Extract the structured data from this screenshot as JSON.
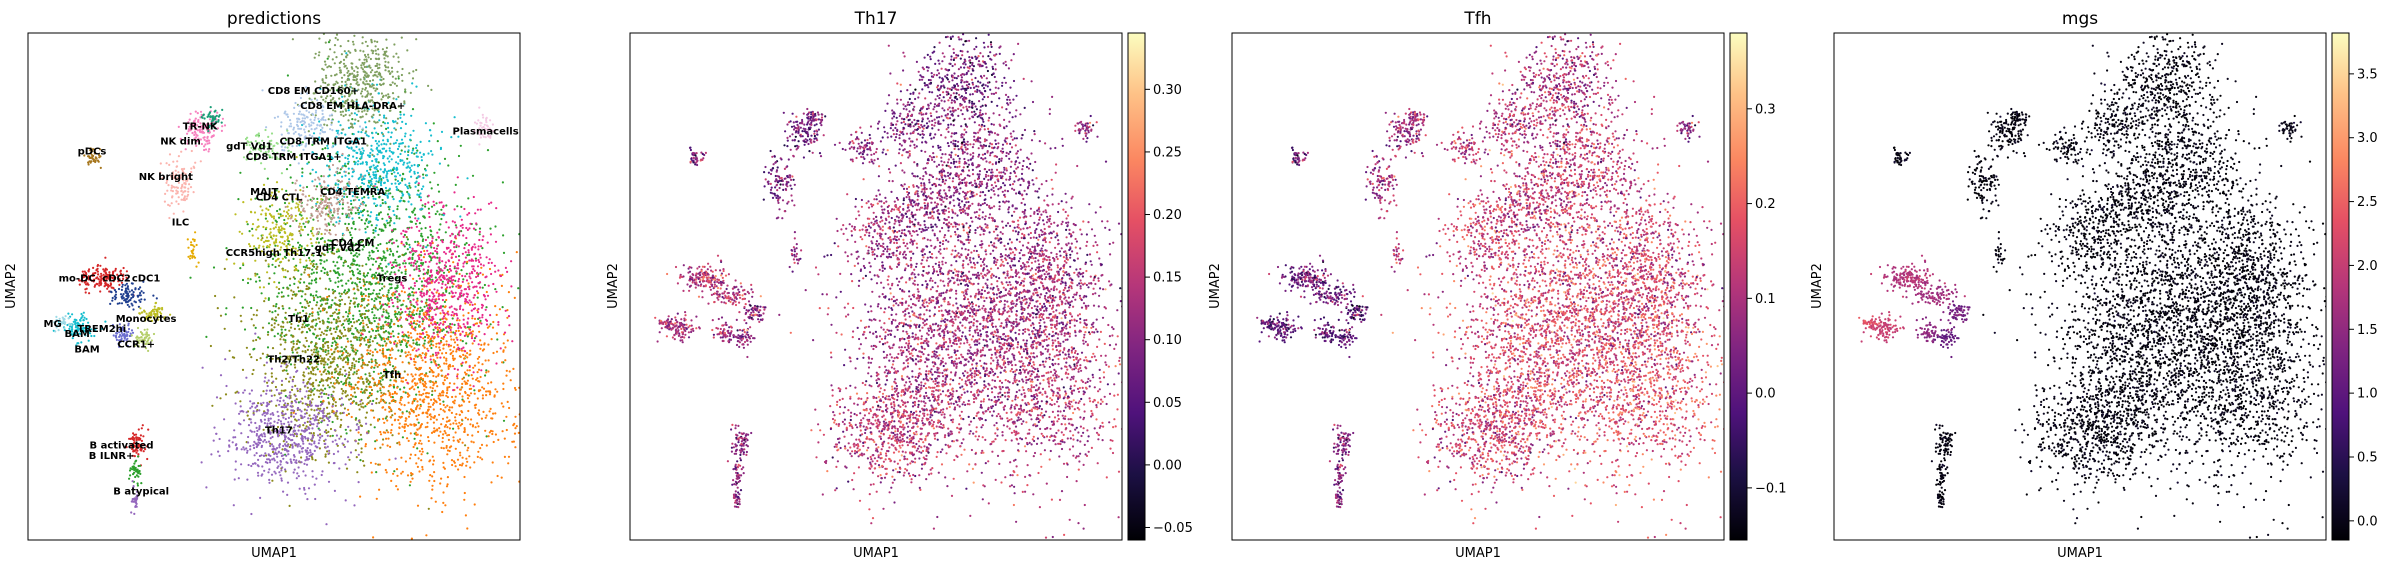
{
  "chart_data": {
    "type": "scatter",
    "description": "UMAP embeddings colored by predicted cell type and by per-cell scores",
    "panels": [
      {
        "title": "predictions",
        "xlabel": "UMAP1",
        "ylabel": "UMAP2",
        "color_by": "categorical",
        "labels": [
          {
            "text": "CD8 EM CD160+",
            "u": 0.58,
            "v": 0.88
          },
          {
            "text": "CD8 EM HLA-DRA+",
            "u": 0.66,
            "v": 0.85
          },
          {
            "text": "Plasmacells",
            "u": 0.93,
            "v": 0.8
          },
          {
            "text": "TR-NK",
            "u": 0.35,
            "v": 0.81
          },
          {
            "text": "pDCs",
            "u": 0.13,
            "v": 0.76
          },
          {
            "text": "NK dim",
            "u": 0.31,
            "v": 0.78
          },
          {
            "text": "gdT Vd1",
            "u": 0.45,
            "v": 0.77
          },
          {
            "text": "CD8 TRM ITGA1",
            "u": 0.6,
            "v": 0.78
          },
          {
            "text": "CD8 TRM ITGA1+",
            "u": 0.54,
            "v": 0.75
          },
          {
            "text": "NK bright",
            "u": 0.28,
            "v": 0.71
          },
          {
            "text": "MAIT",
            "u": 0.48,
            "v": 0.68
          },
          {
            "text": "CD4 TEMRA",
            "u": 0.66,
            "v": 0.68
          },
          {
            "text": "CD4 CTL",
            "u": 0.51,
            "v": 0.67
          },
          {
            "text": "ILC",
            "u": 0.31,
            "v": 0.62
          },
          {
            "text": "CD4 CM",
            "u": 0.66,
            "v": 0.58
          },
          {
            "text": "CCR5high Th17-1",
            "u": 0.5,
            "v": 0.56
          },
          {
            "text": "gdT Vd2",
            "u": 0.63,
            "v": 0.57
          },
          {
            "text": "Tregs",
            "u": 0.74,
            "v": 0.51
          },
          {
            "text": "mo-DC",
            "u": 0.1,
            "v": 0.51
          },
          {
            "text": "cDC2",
            "u": 0.18,
            "v": 0.51
          },
          {
            "text": "cDC1",
            "u": 0.24,
            "v": 0.51
          },
          {
            "text": "Monocytes",
            "u": 0.24,
            "v": 0.43
          },
          {
            "text": "MG",
            "u": 0.05,
            "v": 0.42
          },
          {
            "text": "TREM2hi",
            "u": 0.15,
            "v": 0.41
          },
          {
            "text": "BAM",
            "u": 0.1,
            "v": 0.4
          },
          {
            "text": "CCR1+",
            "u": 0.22,
            "v": 0.38
          },
          {
            "text": "BAM",
            "u": 0.12,
            "v": 0.37
          },
          {
            "text": "Th1",
            "u": 0.55,
            "v": 0.43
          },
          {
            "text": "Th2/Th22",
            "u": 0.54,
            "v": 0.35
          },
          {
            "text": "Tfh",
            "u": 0.74,
            "v": 0.32
          },
          {
            "text": "Th17",
            "u": 0.51,
            "v": 0.21
          },
          {
            "text": "B activated",
            "u": 0.19,
            "v": 0.18
          },
          {
            "text": "B ILNR+",
            "u": 0.17,
            "v": 0.16
          },
          {
            "text": "B atypical",
            "u": 0.23,
            "v": 0.09
          }
        ]
      },
      {
        "title": "Th17",
        "xlabel": "UMAP1",
        "ylabel": "UMAP2",
        "colormap": "magma",
        "colorbar_ticks": [
          "0.30",
          "0.25",
          "0.20",
          "0.15",
          "0.10",
          "0.05",
          "0.00",
          "−0.05"
        ],
        "colorbar_range": [
          -0.06,
          0.345
        ]
      },
      {
        "title": "Tfh",
        "xlabel": "UMAP1",
        "ylabel": "UMAP2",
        "colormap": "magma",
        "colorbar_ticks": [
          "0.3",
          "0.2",
          "0.1",
          "0.0",
          "−0.1"
        ],
        "colorbar_range": [
          -0.155,
          0.38
        ]
      },
      {
        "title": "mgs",
        "xlabel": "UMAP1",
        "ylabel": "UMAP2",
        "colormap": "magma",
        "colorbar_ticks": [
          "3.5",
          "3.0",
          "2.5",
          "2.0",
          "1.5",
          "1.0",
          "0.5",
          "0.0"
        ],
        "colorbar_range": [
          -0.15,
          3.82
        ]
      }
    ]
  }
}
